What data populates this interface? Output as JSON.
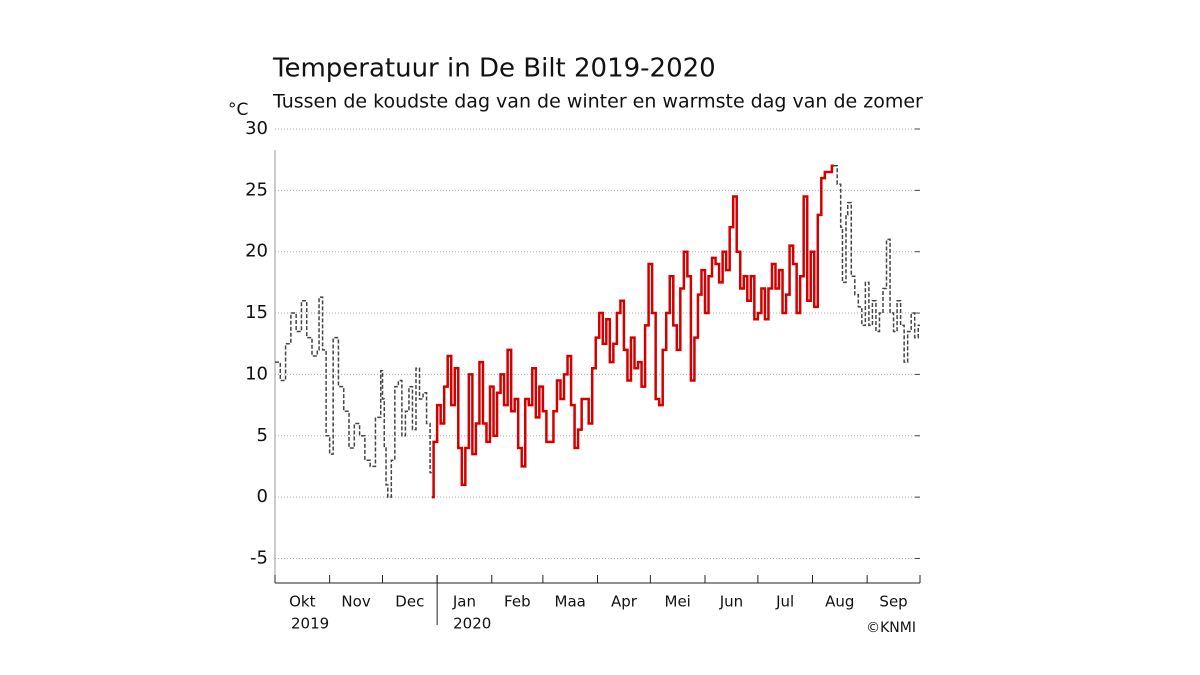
{
  "chart_data": {
    "type": "line",
    "title": "Temperatuur in De Bilt 2019-2020",
    "subtitle": "Tussen de koudste dag van de winter en warmste dag van de zomer",
    "y_unit": "°C",
    "ylim": [
      -7,
      30
    ],
    "yticks": [
      -5,
      0,
      5,
      10,
      15,
      20,
      25,
      30
    ],
    "grid": true,
    "xlim": [
      0,
      366
    ],
    "xticks": [
      0,
      31,
      61,
      92,
      123,
      152,
      183,
      213,
      244,
      274,
      305,
      336,
      366
    ],
    "month_labels": [
      "Okt",
      "Nov",
      "Dec",
      "Jan",
      "Feb",
      "Maa",
      "Apr",
      "Mei",
      "Jun",
      "Jul",
      "Aug",
      "Sep"
    ],
    "year_labels": [
      {
        "value": 0,
        "label": "2019"
      },
      {
        "value": 92,
        "label": "2020"
      }
    ],
    "credit": "©KNMI",
    "series": [
      {
        "color": "#444444",
        "dashed": true,
        "x": [
          0,
          3,
          6,
          9,
          12,
          15,
          18,
          21,
          24,
          25,
          27,
          29,
          31,
          33,
          36,
          39,
          42,
          45,
          48,
          51,
          54,
          57,
          60,
          61,
          62,
          63,
          64,
          66,
          68,
          70,
          72,
          74,
          76,
          78,
          80,
          82,
          84,
          86,
          88
        ],
        "values": [
          11,
          9.5,
          12.5,
          15,
          13.5,
          16,
          13,
          11.5,
          12,
          16.3,
          12,
          5,
          3.5,
          13,
          9,
          7,
          4,
          6,
          5,
          3,
          2.5,
          6.5,
          10.3,
          8,
          4,
          1,
          0,
          3,
          9,
          9.5,
          5,
          7,
          9,
          5.5,
          10.5,
          8,
          8.5,
          6,
          2
        ]
      },
      {
        "color": "#d40000",
        "dashed": false,
        "x": [
          89,
          90,
          92,
          94,
          96,
          98,
          100,
          102,
          104,
          106,
          108,
          110,
          112,
          114,
          116,
          118,
          120,
          122,
          124,
          126,
          128,
          130,
          132,
          134,
          136,
          138,
          140,
          142,
          144,
          146,
          148,
          150,
          152,
          154,
          156,
          158,
          160,
          162,
          164,
          166,
          168,
          170,
          172,
          174,
          176,
          178,
          180,
          182,
          184,
          186,
          188,
          190,
          192,
          194,
          196,
          198,
          200,
          202,
          204,
          206,
          208,
          210,
          212,
          214,
          216,
          218,
          220,
          222,
          224,
          226,
          228,
          230,
          232,
          234,
          236,
          238,
          240,
          242,
          244,
          246,
          248,
          250,
          252,
          254,
          256,
          258,
          260,
          262,
          264,
          266,
          268,
          270,
          272,
          274,
          276,
          278,
          280,
          282,
          284,
          286,
          288,
          290,
          292,
          294,
          296,
          298,
          300,
          302,
          304,
          306,
          308,
          310,
          312,
          314,
          316
        ],
        "values": [
          0,
          4.5,
          7.5,
          6,
          9,
          11.5,
          7.5,
          10.5,
          4,
          1,
          4,
          10,
          3.5,
          6,
          11,
          6,
          4.5,
          9,
          5,
          8.5,
          10,
          7.5,
          12,
          7,
          8,
          4,
          2.5,
          8,
          7.5,
          10.5,
          6.5,
          9,
          7,
          4.5,
          4.5,
          7,
          9.5,
          8,
          10,
          11.5,
          7.5,
          4,
          5.5,
          8,
          8,
          6,
          10.5,
          13,
          15,
          12.5,
          14.5,
          11,
          12.5,
          15,
          16,
          12,
          9.5,
          13,
          10.5,
          11,
          9,
          14,
          19,
          15,
          8,
          7.5,
          12,
          15,
          18,
          14,
          12,
          17,
          20,
          18,
          9.5,
          13,
          16.5,
          18.5,
          15,
          18,
          19.5,
          19,
          17.5,
          20,
          18.5,
          22,
          24.5,
          20,
          17,
          18,
          16,
          18,
          14.5,
          15,
          17,
          14.5,
          17,
          19,
          17,
          18.5,
          15,
          16.5,
          20.5,
          19,
          15,
          18,
          24.5,
          16,
          20,
          15.5,
          23,
          26,
          26.5,
          26.5,
          27
        ]
      },
      {
        "color": "#444444",
        "dashed": true,
        "x": [
          317,
          319,
          321,
          322,
          324,
          325,
          327,
          329,
          331,
          333,
          335,
          337,
          339,
          341,
          343,
          345,
          347,
          349,
          351,
          353,
          355,
          357,
          359,
          361,
          363,
          365
        ],
        "values": [
          27,
          25.5,
          22,
          17.5,
          23,
          24,
          18,
          16.5,
          15.5,
          14,
          17.5,
          14,
          16,
          13.5,
          15,
          17,
          21,
          15,
          13.5,
          16,
          14,
          11,
          13.5,
          15,
          13,
          14
        ]
      }
    ]
  }
}
